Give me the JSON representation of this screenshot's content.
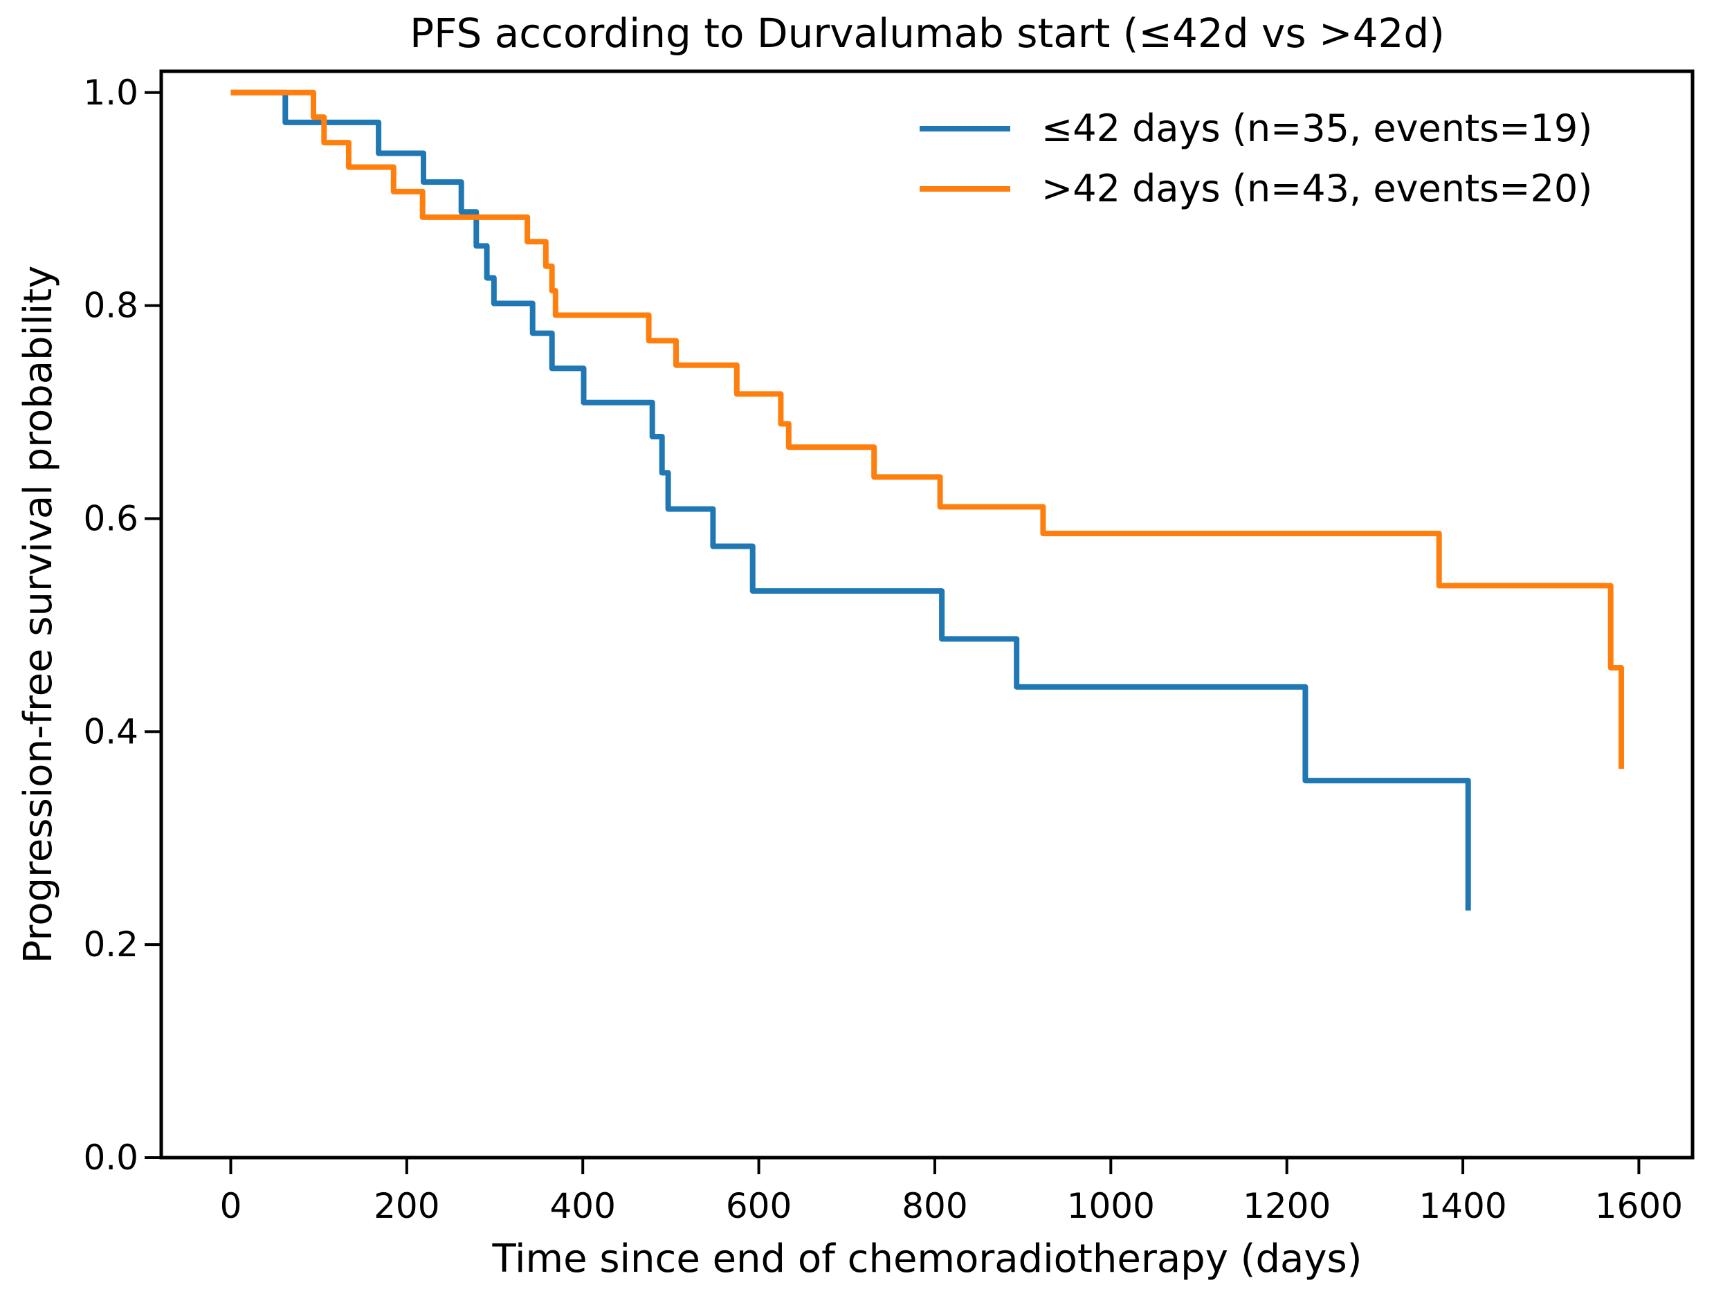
{
  "figure": {
    "background": "#ffffff",
    "title": "PFS according to Durvalumab start (≤42d vs >42d)"
  },
  "chart_data": {
    "type": "line",
    "subtype": "kaplan-meier-step",
    "title": "PFS according to Durvalumab start (≤42d vs >42d)",
    "xlabel": "Time since end of chemoradiotherapy (days)",
    "ylabel": "Progression-free survival probability",
    "xlim": [
      -79,
      1661
    ],
    "ylim": [
      0,
      1.02
    ],
    "grid": false,
    "legend_position": "upper right",
    "legend_frame": false,
    "axis_color": "#000000",
    "xticks": {
      "values": [
        0,
        200,
        400,
        600,
        800,
        1000,
        1200,
        1400,
        1600
      ],
      "labels": [
        "0",
        "200",
        "400",
        "600",
        "800",
        "1000",
        "1200",
        "1400",
        "1600"
      ]
    },
    "yticks": {
      "values": [
        0.0,
        0.2,
        0.4,
        0.6,
        0.8,
        1.0
      ],
      "labels": [
        "0.0",
        "0.2",
        "0.4",
        "0.6",
        "0.8",
        "1.0"
      ]
    },
    "series": [
      {
        "name": "≤42 days (n=35, events=19)",
        "color": "#1f77b4",
        "n": 35,
        "events": 19,
        "line_width": 8,
        "steps": [
          [
            0,
            1.0
          ],
          [
            62,
            0.972
          ],
          [
            168,
            0.943
          ],
          [
            219,
            0.916
          ],
          [
            262,
            0.888
          ],
          [
            279,
            0.856
          ],
          [
            291,
            0.826
          ],
          [
            299,
            0.802
          ],
          [
            343,
            0.774
          ],
          [
            365,
            0.741
          ],
          [
            401,
            0.709
          ],
          [
            479,
            0.677
          ],
          [
            490,
            0.643
          ],
          [
            497,
            0.609
          ],
          [
            548,
            0.574
          ],
          [
            593,
            0.532
          ],
          [
            808,
            0.487
          ],
          [
            893,
            0.442
          ],
          [
            1221,
            0.354
          ],
          [
            1406,
            0.232
          ]
        ]
      },
      {
        "name": ">42 days (n=43, events=20)",
        "color": "#ff7f0e",
        "n": 43,
        "events": 20,
        "line_width": 8,
        "steps": [
          [
            0,
            1.0
          ],
          [
            94,
            0.977
          ],
          [
            106,
            0.953
          ],
          [
            134,
            0.93
          ],
          [
            185,
            0.907
          ],
          [
            218,
            0.883
          ],
          [
            337,
            0.86
          ],
          [
            358,
            0.837
          ],
          [
            365,
            0.814
          ],
          [
            369,
            0.791
          ],
          [
            475,
            0.767
          ],
          [
            506,
            0.744
          ],
          [
            575,
            0.717
          ],
          [
            625,
            0.689
          ],
          [
            634,
            0.667
          ],
          [
            731,
            0.639
          ],
          [
            806,
            0.611
          ],
          [
            923,
            0.586
          ],
          [
            1373,
            0.537
          ],
          [
            1568,
            0.46
          ],
          [
            1580,
            0.365
          ]
        ]
      }
    ]
  }
}
